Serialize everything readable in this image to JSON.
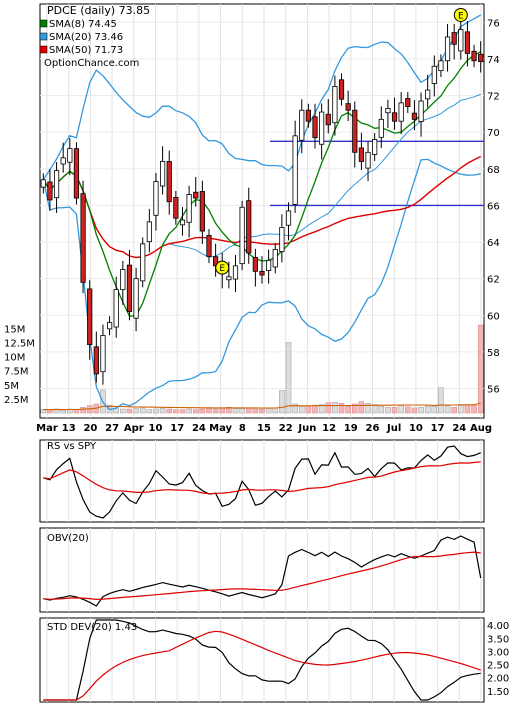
{
  "chart_data": {
    "type": "line",
    "symbol": "PDCE",
    "period": "(daily)",
    "last_price": "73.85",
    "source": "OptionChance.com",
    "x_tick_labels": [
      "Mar",
      "13",
      "20",
      "27",
      "Apr",
      "10",
      "17",
      "24",
      "May",
      "8",
      "15",
      "22",
      "Jun",
      "12",
      "19",
      "26",
      "Jul",
      "10",
      "17",
      "24",
      "Aug"
    ],
    "price_panel": {
      "ylim": [
        54.5,
        77
      ],
      "y_tick_labels": [
        "76",
        "74",
        "72",
        "70",
        "68",
        "66",
        "64",
        "62",
        "60",
        "58",
        "56"
      ],
      "y_tick_values": [
        76,
        74,
        72,
        70,
        68,
        66,
        64,
        62,
        60,
        58,
        56
      ],
      "horizontal_lines": [
        69.5,
        66.0
      ],
      "earnings_markers": [
        {
          "label": "E",
          "index": 27,
          "price": 62.6
        },
        {
          "label": "E",
          "index": 63,
          "price": 76.4
        }
      ],
      "legend": [
        {
          "label": "SMA(8)",
          "value": "74.45",
          "color": "#008000"
        },
        {
          "label": "SMA(20)",
          "value": "73.46",
          "color": "#3399dd"
        },
        {
          "label": "SMA(50)",
          "value": "71.73",
          "color": "#dd0000"
        }
      ],
      "closes": [
        67.4,
        66.3,
        67.9,
        68.6,
        69.1,
        66.4,
        61.8,
        58.4,
        56.8,
        58.9,
        59.6,
        61.4,
        62.5,
        60.2,
        62.0,
        63.9,
        65.1,
        67.3,
        68.4,
        66.2,
        65.3,
        65.2,
        66.6,
        66.4,
        64.6,
        63.2,
        62.7,
        62.3,
        62.1,
        62.7,
        65.9,
        63.4,
        62.4,
        62.2,
        63.0,
        63.6,
        64.8,
        65.7,
        69.8,
        71.2,
        70.6,
        69.7,
        71.1,
        70.4,
        72.5,
        71.8,
        71.2,
        68.9,
        68.4,
        68.9,
        69.6,
        70.7,
        71.3,
        70.6,
        71.6,
        71.4,
        70.7,
        71.7,
        72.3,
        73.6,
        73.9,
        75.2,
        74.8,
        75.6,
        74.3,
        73.9,
        73.85
      ],
      "volume_bars_m": [
        0.6,
        0.6,
        0.7,
        0.5,
        0.7,
        0.6,
        1.0,
        1.3,
        1.6,
        4.1,
        1.4,
        0.9,
        0.7,
        0.7,
        0.8,
        0.9,
        0.6,
        0.7,
        0.8,
        0.7,
        0.6,
        0.6,
        0.7,
        0.6,
        0.7,
        0.8,
        0.7,
        0.9,
        1.0,
        0.8,
        0.8,
        0.9,
        0.7,
        0.7,
        0.8,
        0.9,
        4.0,
        12.5,
        1.6,
        1.2,
        1.3,
        1.4,
        1.5,
        1.8,
        1.9,
        1.7,
        1.2,
        1.6,
        2.0,
        1.7,
        1.5,
        1.2,
        1.0,
        1.0,
        1.4,
        1.1,
        0.9,
        1.0,
        1.2,
        1.2,
        4.5,
        1.3,
        1.0,
        1.5,
        1.4,
        1.3,
        15.6
      ],
      "volume_ylim": [
        0,
        16.5
      ],
      "volume_tick_labels": [
        "15M",
        "12.5M",
        "10M",
        "7.5M",
        "5M",
        "2.5M"
      ],
      "volume_tick_values": [
        15,
        12.5,
        10,
        7.5,
        5,
        2.5
      ]
    },
    "rs_panel": {
      "label": "RS vs SPY"
    },
    "obv_panel": {
      "label": "OBV(20)"
    },
    "std_panel": {
      "label": "STD DEV(20)",
      "value": "1.43",
      "ylim": [
        1.15,
        4.2
      ],
      "y_tick_labels": [
        "4.00",
        "3.50",
        "3.00",
        "2.50",
        "2.00",
        "1.50"
      ],
      "y_tick_values": [
        4.0,
        3.5,
        3.0,
        2.5,
        2.0,
        1.5
      ]
    }
  }
}
